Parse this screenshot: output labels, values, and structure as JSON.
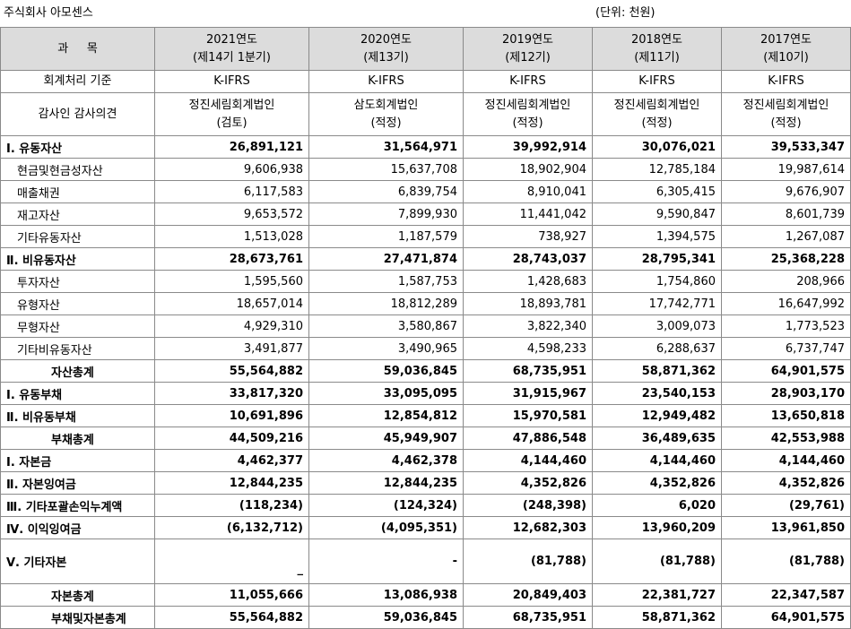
{
  "caption": {
    "company": "주식회사 아모센스",
    "unit": "(단위: 천원)"
  },
  "header": {
    "item_label": "과     목",
    "columns": [
      {
        "year": "2021연도",
        "term": "(제14기 1분기)"
      },
      {
        "year": "2020연도",
        "term": "(제13기)"
      },
      {
        "year": "2019연도",
        "term": "(제12기)"
      },
      {
        "year": "2018연도",
        "term": "(제11기)"
      },
      {
        "year": "2017연도",
        "term": "(제10기)"
      }
    ]
  },
  "standard": {
    "label": "회계처리 기준",
    "values": [
      "K-IFRS",
      "K-IFRS",
      "K-IFRS",
      "K-IFRS",
      "K-IFRS"
    ]
  },
  "auditor": {
    "label": "감사인 감사의견",
    "values": [
      {
        "firm": "정진세림회계법인",
        "opinion": "(검토)"
      },
      {
        "firm": "삼도회계법인",
        "opinion": "(적정)"
      },
      {
        "firm": "정진세림회계법인",
        "opinion": "(적정)"
      },
      {
        "firm": "정진세림회계법인",
        "opinion": "(적정)"
      },
      {
        "firm": "정진세림회계법인",
        "opinion": "(적정)"
      }
    ]
  },
  "rows": [
    {
      "label": "Ⅰ. 유동자산",
      "values": [
        "26,891,121",
        "31,564,971",
        "39,992,914",
        "30,076,021",
        "39,533,347"
      ]
    },
    {
      "label": "현금및현금성자산",
      "values": [
        "9,606,938",
        "15,637,708",
        "18,902,904",
        "12,785,184",
        "19,987,614"
      ]
    },
    {
      "label": "매출채권",
      "values": [
        "6,117,583",
        "6,839,754",
        "8,910,041",
        "6,305,415",
        "9,676,907"
      ]
    },
    {
      "label": "재고자산",
      "values": [
        "9,653,572",
        "7,899,930",
        "11,441,042",
        "9,590,847",
        "8,601,739"
      ]
    },
    {
      "label": "기타유동자산",
      "values": [
        "1,513,028",
        "1,187,579",
        "738,927",
        "1,394,575",
        "1,267,087"
      ]
    },
    {
      "label": "Ⅱ. 비유동자산",
      "values": [
        "28,673,761",
        "27,471,874",
        "28,743,037",
        "28,795,341",
        "25,368,228"
      ]
    },
    {
      "label": "투자자산",
      "values": [
        "1,595,560",
        "1,587,753",
        "1,428,683",
        "1,754,860",
        "208,966"
      ]
    },
    {
      "label": "유형자산",
      "values": [
        "18,657,014",
        "18,812,289",
        "18,893,781",
        "17,742,771",
        "16,647,992"
      ]
    },
    {
      "label": "무형자산",
      "values": [
        "4,929,310",
        "3,580,867",
        "3,822,340",
        "3,009,073",
        "1,773,523"
      ]
    },
    {
      "label": "기타비유동자산",
      "values": [
        "3,491,877",
        "3,490,965",
        "4,598,233",
        "6,288,637",
        "6,737,747"
      ]
    },
    {
      "label": "자산총계",
      "values": [
        "55,564,882",
        "59,036,845",
        "68,735,951",
        "58,871,362",
        "64,901,575"
      ]
    },
    {
      "label": "Ⅰ. 유동부채",
      "values": [
        "33,817,320",
        "33,095,095",
        "31,915,967",
        "23,540,153",
        "28,903,170"
      ]
    },
    {
      "label": "Ⅱ. 비유동부채",
      "values": [
        "10,691,896",
        "12,854,812",
        "15,970,581",
        "12,949,482",
        "13,650,818"
      ]
    },
    {
      "label": "부채총계",
      "values": [
        "44,509,216",
        "45,949,907",
        "47,886,548",
        "36,489,635",
        "42,553,988"
      ]
    },
    {
      "label": "Ⅰ. 자본금",
      "values": [
        "4,462,377",
        "4,462,378",
        "4,144,460",
        "4,144,460",
        "4,144,460"
      ]
    },
    {
      "label": "Ⅱ. 자본잉여금",
      "values": [
        "12,844,235",
        "12,844,235",
        "4,352,826",
        "4,352,826",
        "4,352,826"
      ]
    },
    {
      "label": "Ⅲ. 기타포괄손익누계액",
      "values": [
        "(118,234)",
        "(124,324)",
        "(248,398)",
        "6,020",
        "(29,761)"
      ]
    },
    {
      "label": "Ⅳ. 이익잉여금",
      "values": [
        "(6,132,712)",
        "(4,095,351)",
        "12,682,303",
        "13,960,209",
        "13,961,850"
      ]
    },
    {
      "label": "Ⅴ. 기타자본",
      "values": [
        "_",
        "-",
        "(81,788)",
        "(81,788)",
        "(81,788)"
      ]
    },
    {
      "label": "자본총계",
      "values": [
        "11,055,666",
        "13,086,938",
        "20,849,403",
        "22,381,727",
        "22,347,587"
      ]
    },
    {
      "label": "부채및자본총계",
      "values": [
        "55,564,882",
        "59,036,845",
        "68,735,951",
        "58,871,362",
        "64,901,575"
      ]
    }
  ]
}
